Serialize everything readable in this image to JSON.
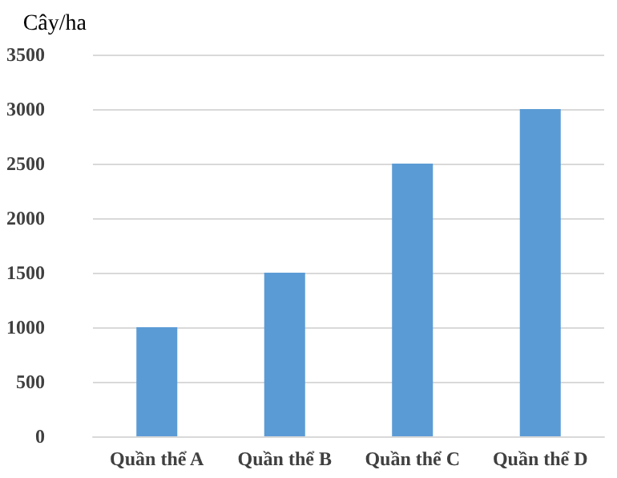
{
  "chart_data": {
    "type": "bar",
    "ylabel": "Cây/ha",
    "categories": [
      "Quần thể A",
      "Quần thể B",
      "Quần thể C",
      "Quần thể D"
    ],
    "values": [
      1000,
      1500,
      2500,
      3000
    ],
    "color": "#5b9bd5",
    "ylim": [
      0,
      3500
    ],
    "yticks": [
      0,
      500,
      1000,
      1500,
      2000,
      2500,
      3000,
      3500
    ],
    "grid": "y"
  }
}
